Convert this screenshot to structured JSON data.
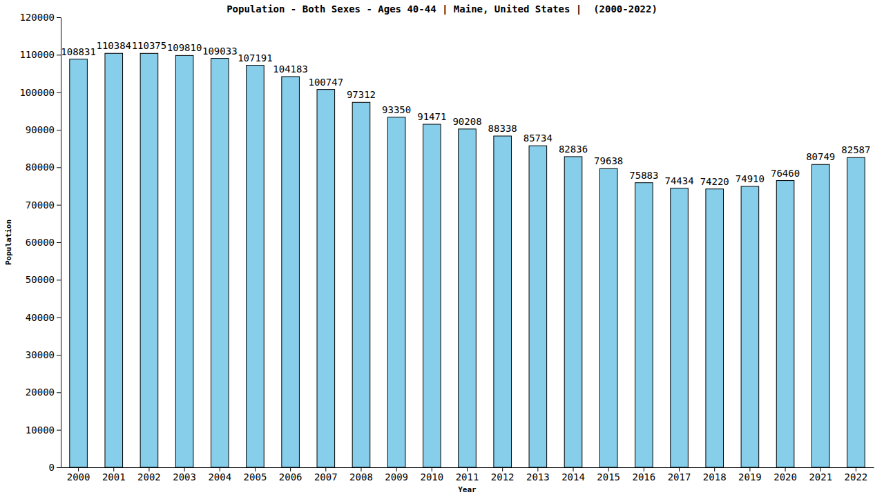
{
  "chart_data": {
    "type": "bar",
    "title": "Population - Both Sexes - Ages 40-44 | Maine, United States |  (2000-2022)",
    "x_label": "Year",
    "y_label": "Population",
    "categories": [
      "2000",
      "2001",
      "2002",
      "2003",
      "2004",
      "2005",
      "2006",
      "2007",
      "2008",
      "2009",
      "2010",
      "2011",
      "2012",
      "2013",
      "2014",
      "2015",
      "2016",
      "2017",
      "2018",
      "2019",
      "2020",
      "2021",
      "2022"
    ],
    "values": [
      108831,
      110384,
      110375,
      109810,
      109033,
      107191,
      104183,
      100747,
      97312,
      93350,
      91471,
      90208,
      88338,
      85734,
      82836,
      79638,
      75883,
      74434,
      74220,
      74910,
      76460,
      80749,
      82587
    ],
    "color": "#87ceeb",
    "ylim": [
      0,
      120000
    ],
    "yticks": [
      0,
      10000,
      20000,
      30000,
      40000,
      50000,
      60000,
      70000,
      80000,
      90000,
      100000,
      110000,
      120000
    ],
    "grid": false,
    "data_labels": true
  }
}
